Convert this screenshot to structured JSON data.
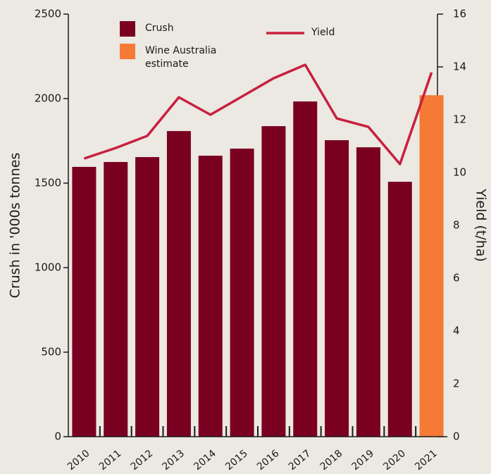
{
  "chart_data": {
    "type": "bar",
    "categories": [
      "2010",
      "2011",
      "2012",
      "2013",
      "2014",
      "2015",
      "2016",
      "2017",
      "2018",
      "2019",
      "2020",
      "2021"
    ],
    "series": [
      {
        "name": "Crush",
        "type": "bar",
        "color": "#7a0020",
        "values": [
          1596,
          1625,
          1654,
          1808,
          1662,
          1704,
          1837,
          1983,
          1754,
          1712,
          1508,
          null
        ]
      },
      {
        "name": "Wine Australia estimate",
        "type": "bar",
        "color": "#f47a36",
        "values": [
          null,
          null,
          null,
          null,
          null,
          null,
          null,
          null,
          null,
          null,
          null,
          2020
        ]
      },
      {
        "name": "Yield",
        "type": "line",
        "axis": "y2",
        "color": "#c8203f",
        "values": [
          10.53,
          10.93,
          11.39,
          12.85,
          12.19,
          12.88,
          13.57,
          14.08,
          12.05,
          11.73,
          10.32,
          13.79
        ]
      }
    ],
    "ylabel": "Crush in '000s tonnes",
    "y2label": "Yield (t/ha)",
    "ylim": [
      0,
      2500
    ],
    "yticks": [
      0,
      500,
      1000,
      1500,
      2000,
      2500
    ],
    "y2lim": [
      0,
      16
    ],
    "y2ticks": [
      0,
      2,
      4,
      6,
      8,
      10,
      12,
      14,
      16
    ]
  }
}
